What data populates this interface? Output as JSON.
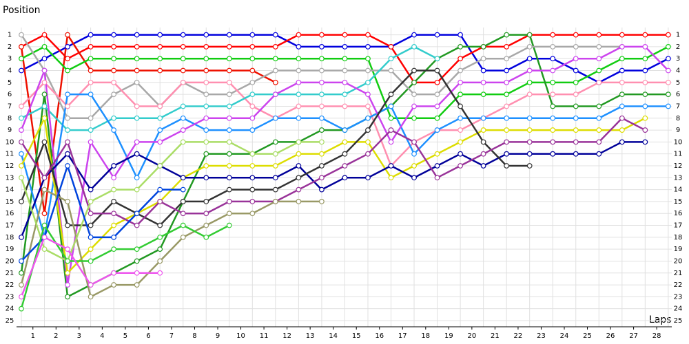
{
  "chart_data": {
    "type": "line",
    "y_label": "Position",
    "x_label": "Laps",
    "inverted_y": true,
    "grid": true,
    "x": [
      0,
      1,
      2,
      3,
      4,
      5,
      6,
      7,
      8,
      9,
      10,
      11,
      12,
      13,
      14,
      15,
      16,
      17,
      18,
      19,
      20,
      21,
      22,
      23,
      24,
      25,
      26,
      27,
      28
    ],
    "xlim": [
      0,
      28.6
    ],
    "xticks": [
      {
        "value": 0.5,
        "label": "1"
      },
      {
        "value": 1.5,
        "label": "2"
      },
      {
        "value": 2.5,
        "label": "3"
      },
      {
        "value": 3.5,
        "label": "4"
      },
      {
        "value": 4.5,
        "label": "5"
      },
      {
        "value": 5.5,
        "label": "6"
      },
      {
        "value": 6.5,
        "label": "7"
      },
      {
        "value": 7.5,
        "label": "8"
      },
      {
        "value": 8.5,
        "label": "9"
      },
      {
        "value": 9.5,
        "label": "10"
      },
      {
        "value": 10.5,
        "label": "11"
      },
      {
        "value": 11.5,
        "label": "12"
      },
      {
        "value": 12.5,
        "label": "13"
      },
      {
        "value": 13.5,
        "label": "14"
      },
      {
        "value": 14.5,
        "label": "15"
      },
      {
        "value": 15.5,
        "label": "16"
      },
      {
        "value": 16.5,
        "label": "17"
      },
      {
        "value": 17.5,
        "label": "18"
      },
      {
        "value": 18.5,
        "label": "19"
      },
      {
        "value": 19.5,
        "label": "20"
      },
      {
        "value": 20.5,
        "label": "21"
      },
      {
        "value": 21.5,
        "label": "22"
      },
      {
        "value": 22.5,
        "label": "23"
      },
      {
        "value": 23.5,
        "label": "24"
      },
      {
        "value": 24.5,
        "label": "25"
      },
      {
        "value": 25.5,
        "label": "26"
      },
      {
        "value": 26.5,
        "label": "27"
      },
      {
        "value": 27.5,
        "label": "28"
      }
    ],
    "ylim": [
      0,
      26
    ],
    "yticks": [
      1,
      2,
      3,
      4,
      5,
      6,
      7,
      8,
      9,
      10,
      11,
      12,
      13,
      14,
      15,
      16,
      17,
      18,
      19,
      20,
      21,
      22,
      23,
      24,
      25
    ],
    "series": [
      {
        "color": "#0000dd",
        "values": [
          4,
          3,
          2,
          1,
          1,
          1,
          1,
          1,
          1,
          1,
          1,
          1,
          2,
          2,
          2,
          2,
          2,
          1,
          1,
          1,
          4,
          4,
          3,
          3,
          4,
          5,
          4,
          4,
          3
        ]
      },
      {
        "color": "#ff0000",
        "values": [
          2,
          1,
          3,
          2,
          2,
          2,
          2,
          2,
          2,
          2,
          2,
          2,
          1,
          1,
          1,
          1,
          2,
          5,
          5,
          3,
          2,
          2,
          1,
          1,
          1,
          1,
          1,
          1,
          1
        ]
      },
      {
        "color": "#ee1100",
        "values": [
          2,
          16,
          1,
          4,
          4,
          4,
          4,
          4,
          4,
          4,
          4,
          5,
          null,
          null,
          null,
          null,
          null,
          null,
          null,
          null,
          null,
          null,
          null,
          null,
          null,
          null,
          null,
          null,
          null
        ]
      },
      {
        "color": "#11cc11",
        "values": [
          3,
          2,
          4,
          3,
          3,
          3,
          3,
          3,
          3,
          3,
          3,
          3,
          3,
          3,
          3,
          3,
          8,
          8,
          8,
          6,
          6,
          6,
          5,
          5,
          5,
          4,
          3,
          3,
          2
        ]
      },
      {
        "color": "#229922",
        "values": [
          21,
          6,
          23,
          22,
          21,
          20,
          19,
          15,
          11,
          11,
          11,
          10,
          10,
          9,
          9,
          8,
          7,
          5,
          3,
          2,
          2,
          1,
          1,
          7,
          7,
          7,
          6,
          6,
          6
        ]
      },
      {
        "color": "#a8a8a8",
        "values": [
          1,
          4,
          8,
          8,
          6,
          5,
          7,
          5,
          6,
          6,
          5,
          4,
          4,
          4,
          4,
          4,
          4,
          6,
          6,
          4,
          3,
          3,
          2,
          2,
          2,
          2,
          2,
          null,
          null
        ]
      },
      {
        "color": "#ff8fb0",
        "values": [
          7,
          5,
          7,
          5,
          5,
          7,
          7,
          5,
          5,
          5,
          7,
          8,
          7,
          7,
          7,
          7,
          12,
          10,
          9,
          9,
          8,
          7,
          6,
          6,
          6,
          5,
          5,
          5,
          5
        ]
      },
      {
        "color": "#33cccc",
        "values": [
          8,
          7,
          9,
          9,
          8,
          8,
          8,
          7,
          7,
          7,
          6,
          6,
          6,
          6,
          6,
          5,
          3,
          2,
          3,
          null,
          null,
          null,
          null,
          null,
          null,
          null,
          null,
          null,
          null
        ]
      },
      {
        "color": "#1e90ff",
        "values": [
          11,
          18,
          6,
          6,
          9,
          13,
          9,
          8,
          9,
          9,
          9,
          8,
          8,
          8,
          9,
          8,
          7,
          11,
          9,
          8,
          8,
          8,
          8,
          8,
          8,
          8,
          7,
          7,
          7
        ]
      },
      {
        "color": "#cc44ee",
        "values": [
          9,
          4,
          22,
          10,
          13,
          10,
          10,
          9,
          8,
          8,
          8,
          6,
          5,
          5,
          5,
          6,
          10,
          7,
          7,
          5,
          5,
          5,
          4,
          4,
          3,
          3,
          2,
          2,
          4
        ]
      },
      {
        "color": "#dddd00",
        "values": [
          12,
          8,
          21,
          19,
          17,
          16,
          15,
          13,
          12,
          12,
          12,
          12,
          11,
          11,
          10,
          10,
          13,
          12,
          11,
          10,
          9,
          9,
          9,
          9,
          9,
          9,
          9,
          8,
          null
        ]
      },
      {
        "color": "#000099",
        "values": [
          18,
          13,
          11,
          14,
          12,
          11,
          12,
          13,
          13,
          13,
          13,
          13,
          12,
          14,
          13,
          13,
          12,
          13,
          12,
          11,
          12,
          11,
          11,
          11,
          11,
          11,
          10,
          10,
          null
        ]
      },
      {
        "color": "#333333",
        "values": [
          15,
          10,
          17,
          17,
          15,
          16,
          17,
          15,
          15,
          14,
          14,
          14,
          13,
          12,
          11,
          9,
          6,
          4,
          4,
          7,
          10,
          12,
          12,
          null,
          null,
          null,
          null,
          null,
          null
        ]
      },
      {
        "color": "#993399",
        "values": [
          10,
          13,
          10,
          16,
          16,
          17,
          15,
          16,
          16,
          15,
          15,
          15,
          14,
          13,
          12,
          11,
          9,
          10,
          13,
          12,
          11,
          10,
          10,
          10,
          10,
          10,
          8,
          9,
          null
        ]
      },
      {
        "color": "#999966",
        "values": [
          22,
          14,
          15,
          23,
          22,
          22,
          20,
          18,
          17,
          16,
          16,
          15,
          15,
          15,
          null,
          null,
          null,
          null,
          null,
          null,
          null,
          null,
          null,
          null,
          null,
          null,
          null,
          null,
          null
        ]
      },
      {
        "color": "#aadd66",
        "values": [
          13,
          19,
          20,
          15,
          14,
          14,
          12,
          10,
          10,
          10,
          11,
          11,
          10,
          10,
          null,
          null,
          null,
          null,
          null,
          null,
          null,
          null,
          null,
          null,
          null,
          null,
          null,
          null,
          null
        ]
      },
      {
        "color": "#0044dd",
        "values": [
          20,
          18,
          12,
          18,
          18,
          16,
          14,
          14,
          null,
          null,
          null,
          null,
          null,
          null,
          null,
          null,
          null,
          null,
          null,
          null,
          null,
          null,
          null,
          null,
          null,
          null,
          null,
          null,
          null
        ]
      },
      {
        "color": "#33cc33",
        "values": [
          24,
          17,
          20,
          20,
          19,
          19,
          18,
          17,
          18,
          17,
          null,
          null,
          null,
          null,
          null,
          null,
          null,
          null,
          null,
          null,
          null,
          null,
          null,
          null,
          null,
          null,
          null,
          null,
          null
        ]
      },
      {
        "color": "#ee55ee",
        "values": [
          23,
          18,
          19,
          22,
          21,
          21,
          21,
          null,
          null,
          null,
          null,
          null,
          null,
          null,
          null,
          null,
          null,
          null,
          null,
          null,
          null,
          null,
          null,
          null,
          null,
          null,
          null,
          null,
          null
        ]
      }
    ]
  }
}
